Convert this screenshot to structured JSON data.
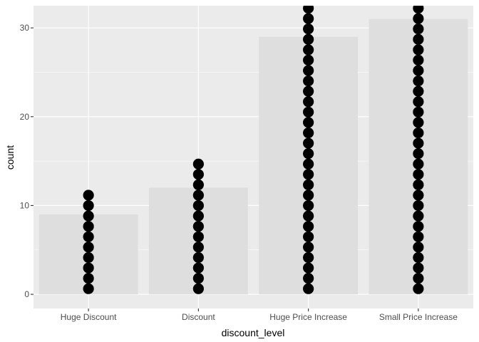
{
  "chart_data": {
    "type": "bar",
    "xlabel": "discount_level",
    "ylabel": "count",
    "categories": [
      "Huge Discount",
      "Discount",
      "Huge Price Increase",
      "Small Price Increase"
    ],
    "values": [
      9,
      12,
      29,
      31
    ],
    "dot_counts": [
      10,
      13,
      32,
      32
    ],
    "ylim": [
      -1.6,
      32.5
    ],
    "yticks": [
      0,
      10,
      20,
      30
    ],
    "grid": true,
    "colors": {
      "panel_background": "#ebebeb",
      "grid_line": "#ffffff",
      "bar_fill": "#dedede",
      "dot_fill": "#000000"
    }
  }
}
